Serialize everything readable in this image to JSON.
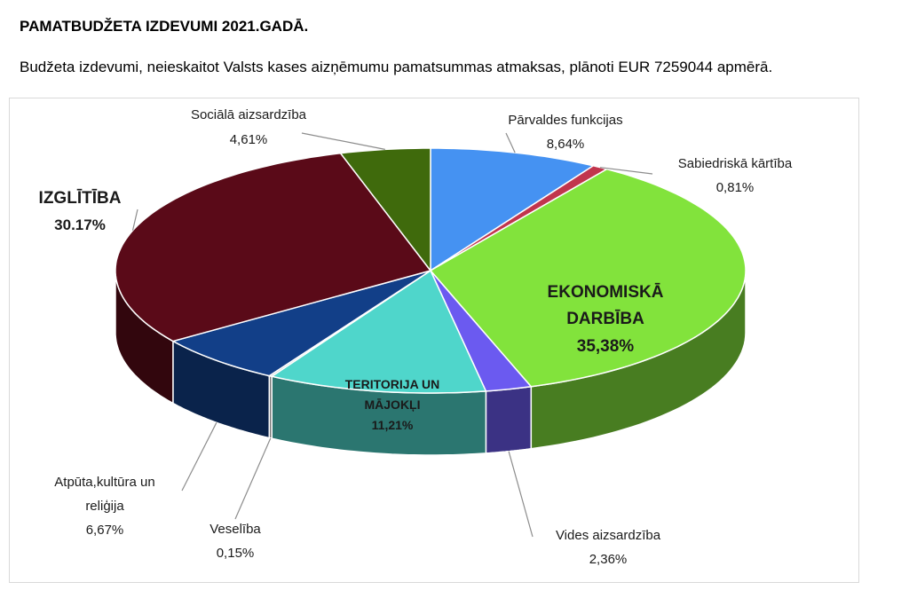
{
  "title": "PAMATBUDŽETA IZDEVUMI 2021.GADĀ.",
  "subtitle": "Budžeta izdevumi, neieskaitot Valsts kases aizņēmumu pamatsummas atmaksas, plānoti EUR 7259044 apmērā.",
  "chart_data": {
    "type": "pie",
    "slices": [
      {
        "name": "Pārvaldes funkcijas",
        "value": 8.64,
        "label": "8,64%",
        "color": "#4592f2"
      },
      {
        "name": "Sabiedriskā kārtība",
        "value": 0.81,
        "label": "0,81%",
        "color": "#c1354d"
      },
      {
        "name": "EKONOMISKĀ DARBĪBA",
        "value": 35.38,
        "label": "35,38%",
        "color": "#82e33c"
      },
      {
        "name": "Vides aizsardzība",
        "value": 2.36,
        "label": "2,36%",
        "color": "#6b5af0"
      },
      {
        "name": "TERITORIJA UN MĀJOKĻI",
        "value": 11.21,
        "label": "11,21%",
        "color": "#4fd6cb"
      },
      {
        "name": "Veselība",
        "value": 0.15,
        "label": "0,15%",
        "color": "#c8c8c8"
      },
      {
        "name": "Atpūta,kultūra un reliģija",
        "value": 6.67,
        "label": "6,67%",
        "color": "#123f88"
      },
      {
        "name": "IZGLĪTĪBA",
        "value": 30.17,
        "label": "30.17%",
        "color": "#5a0a18"
      },
      {
        "name": "Sociālā aizsardzība",
        "value": 4.61,
        "label": "4,61%",
        "color": "#3f6a0c"
      }
    ]
  }
}
